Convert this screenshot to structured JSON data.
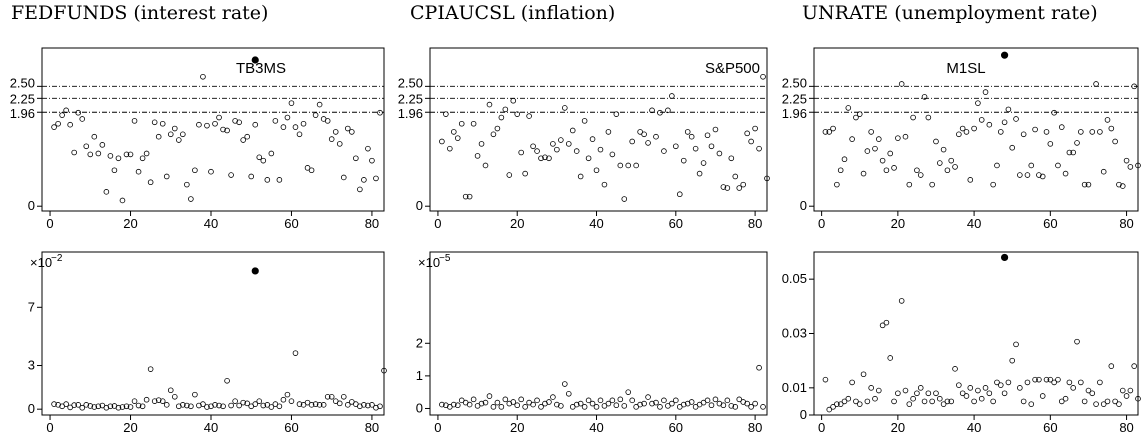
{
  "column_titles": [
    "FEDFUNDS (interest rate)",
    "CPIAUCSL (inflation)",
    "UNRATE (unemployment rate)"
  ],
  "chart_data": [
    {
      "type": "scatter",
      "title": "",
      "label": "TB3MS",
      "xlabel": "",
      "ylabel": "",
      "xlim": [
        -2,
        83
      ],
      "ylim": [
        -0.1,
        3.3
      ],
      "x_ticks": [
        0,
        20,
        40,
        60,
        80
      ],
      "y_ticks": [
        {
          "value": 0,
          "label": "0"
        },
        {
          "value": 1.96,
          "label": "1.96"
        },
        {
          "value": 2.25,
          "label": "2.25"
        },
        {
          "value": 2.5,
          "label": "2.50"
        }
      ],
      "reference_lines": [
        1.96,
        2.25,
        2.5
      ],
      "highlight": {
        "x": 51,
        "y": 3.05
      },
      "y": [
        1.65,
        1.72,
        1.9,
        2.0,
        1.7,
        1.12,
        1.95,
        1.82,
        1.25,
        1.08,
        1.45,
        1.1,
        1.28,
        0.3,
        1.05,
        0.75,
        1.0,
        0.12,
        1.08,
        1.08,
        1.78,
        0.72,
        1.0,
        1.1,
        0.5,
        1.75,
        1.45,
        1.72,
        0.62,
        1.5,
        1.62,
        1.38,
        1.5,
        0.45,
        0.15,
        0.75,
        1.7,
        2.7,
        1.68,
        0.72,
        1.72,
        1.85,
        1.6,
        1.58,
        0.65,
        1.78,
        1.75,
        1.38,
        1.45,
        0.62,
        1.7,
        1.02,
        0.95,
        0.55,
        1.1,
        1.78,
        0.55,
        1.65,
        1.85,
        2.15,
        1.65,
        1.5,
        1.72,
        0.8,
        0.75,
        1.9,
        2.12,
        1.82,
        1.78,
        1.4,
        1.55,
        1.3,
        0.6,
        1.62,
        1.55,
        1.0,
        0.35,
        0.55,
        1.2,
        0.95,
        0.58,
        1.95
      ]
    },
    {
      "type": "scatter",
      "title": "",
      "label": "S&P500",
      "xlabel": "",
      "ylabel": "",
      "xlim": [
        -2,
        83
      ],
      "ylim": [
        -0.1,
        3.3
      ],
      "x_ticks": [
        0,
        20,
        40,
        60,
        80
      ],
      "y_ticks": [
        {
          "value": 0,
          "label": "0"
        },
        {
          "value": 1.96,
          "label": "1.96"
        },
        {
          "value": 2.25,
          "label": "2.25"
        },
        {
          "value": 2.5,
          "label": "2.50"
        }
      ],
      "reference_lines": [
        1.96,
        2.25,
        2.5
      ],
      "y": [
        1.35,
        1.92,
        1.2,
        1.55,
        1.42,
        1.72,
        0.2,
        0.2,
        1.72,
        1.05,
        1.3,
        0.85,
        2.12,
        1.5,
        1.62,
        1.85,
        2.02,
        0.65,
        2.2,
        1.92,
        1.12,
        0.68,
        1.88,
        1.25,
        1.15,
        1.0,
        1.02,
        1.0,
        1.3,
        1.18,
        1.38,
        2.05,
        1.3,
        1.58,
        1.15,
        0.62,
        1.78,
        1.0,
        1.4,
        0.75,
        1.18,
        0.45,
        1.55,
        1.08,
        1.92,
        0.85,
        0.15,
        0.85,
        1.35,
        0.85,
        1.55,
        1.5,
        1.32,
        2.0,
        1.45,
        1.95,
        1.15,
        2.0,
        2.3,
        1.25,
        0.25,
        0.95,
        1.55,
        1.45,
        1.2,
        0.68,
        0.9,
        1.48,
        1.25,
        1.6,
        1.1,
        0.4,
        0.38,
        1.0,
        0.62,
        0.38,
        0.45,
        1.52,
        1.35,
        1.62,
        1.2,
        2.7,
        0.58
      ]
    },
    {
      "type": "scatter",
      "title": "",
      "label": "M1SL",
      "xlabel": "",
      "ylabel": "",
      "xlim": [
        -2,
        83
      ],
      "ylim": [
        -0.1,
        3.3
      ],
      "x_ticks": [
        0,
        20,
        40,
        60,
        80
      ],
      "y_ticks": [
        {
          "value": 0,
          "label": "0"
        },
        {
          "value": 1.96,
          "label": "1.96"
        },
        {
          "value": 2.25,
          "label": "2.25"
        },
        {
          "value": 2.5,
          "label": "2.50"
        }
      ],
      "reference_lines": [
        1.96,
        2.25,
        2.5
      ],
      "highlight": {
        "x": 48,
        "y": 3.15
      },
      "y": [
        1.55,
        1.55,
        1.62,
        0.45,
        0.75,
        0.98,
        2.05,
        1.4,
        1.85,
        1.92,
        0.68,
        1.15,
        1.55,
        1.2,
        1.4,
        0.95,
        0.75,
        1.1,
        0.8,
        1.42,
        2.55,
        1.45,
        0.45,
        1.85,
        0.75,
        0.65,
        2.28,
        1.85,
        0.45,
        1.35,
        0.9,
        1.18,
        0.75,
        0.95,
        0.82,
        1.5,
        1.62,
        1.55,
        0.55,
        1.62,
        2.15,
        1.8,
        2.38,
        1.7,
        0.45,
        0.85,
        1.55,
        1.75,
        2.02,
        1.22,
        1.82,
        0.65,
        1.5,
        0.65,
        0.85,
        1.6,
        0.65,
        0.62,
        1.55,
        1.3,
        1.95,
        0.85,
        1.65,
        0.68,
        1.12,
        1.12,
        1.32,
        1.55,
        0.45,
        0.45,
        1.55,
        2.55,
        1.55,
        0.72,
        1.8,
        1.62,
        1.35,
        0.45,
        0.42,
        0.95,
        0.82,
        2.5,
        0.85
      ]
    },
    {
      "type": "scatter",
      "title": "",
      "xlabel": "",
      "ylabel": "",
      "scale_label": "×10",
      "scale_exponent": "−2",
      "xlim": [
        -2,
        83
      ],
      "ylim": [
        -0.4,
        10.8
      ],
      "x_ticks": [
        0,
        20,
        40,
        60,
        80
      ],
      "y_ticks": [
        {
          "value": 0,
          "label": "0"
        },
        {
          "value": 3,
          "label": "3"
        },
        {
          "value": 7,
          "label": "7"
        }
      ],
      "highlight": {
        "x": 51,
        "y": 9.5
      },
      "y": [
        0.35,
        0.3,
        0.2,
        0.35,
        0.12,
        0.28,
        0.3,
        0.1,
        0.3,
        0.22,
        0.15,
        0.2,
        0.25,
        0.1,
        0.2,
        0.22,
        0.1,
        0.15,
        0.2,
        0.15,
        0.55,
        0.25,
        0.2,
        0.65,
        2.75,
        0.55,
        0.62,
        0.55,
        0.3,
        1.3,
        0.85,
        0.2,
        0.3,
        0.25,
        0.2,
        1.0,
        0.25,
        0.35,
        0.15,
        0.2,
        0.3,
        0.25,
        0.2,
        1.95,
        0.25,
        0.55,
        0.25,
        0.45,
        0.4,
        0.2,
        0.35,
        0.55,
        0.25,
        0.3,
        0.15,
        0.35,
        0.2,
        0.65,
        1.0,
        0.55,
        3.85,
        0.35,
        0.3,
        0.45,
        0.3,
        0.35,
        0.3,
        0.3,
        0.85,
        0.85,
        0.55,
        0.4,
        0.85,
        0.3,
        0.5,
        0.35,
        0.2,
        0.3,
        0.25,
        0.3,
        0.1,
        0.2,
        2.65
      ]
    },
    {
      "type": "scatter",
      "title": "",
      "xlabel": "",
      "ylabel": "",
      "scale_label": "×10",
      "scale_exponent": "−5",
      "xlim": [
        -2,
        83
      ],
      "ylim": [
        -0.2,
        4.8
      ],
      "x_ticks": [
        0,
        20,
        40,
        60,
        80
      ],
      "y_ticks": [
        {
          "value": 0,
          "label": "0"
        },
        {
          "value": 1,
          "label": "1"
        },
        {
          "value": 2,
          "label": "2"
        }
      ],
      "y": [
        0.12,
        0.1,
        0.05,
        0.12,
        0.1,
        0.25,
        0.18,
        0.12,
        0.28,
        0.08,
        0.15,
        0.18,
        0.38,
        0.05,
        0.18,
        0.05,
        0.28,
        0.15,
        0.2,
        0.1,
        0.28,
        0.05,
        0.18,
        0.12,
        0.25,
        0.05,
        0.15,
        0.2,
        0.35,
        0.12,
        0.08,
        0.75,
        0.45,
        0.05,
        0.12,
        0.15,
        0.05,
        0.25,
        0.15,
        0.05,
        0.25,
        0.08,
        0.15,
        0.25,
        0.1,
        0.28,
        0.08,
        0.5,
        0.25,
        0.05,
        0.12,
        0.15,
        0.35,
        0.15,
        0.18,
        0.05,
        0.25,
        0.08,
        0.15,
        0.25,
        0.05,
        0.12,
        0.15,
        0.2,
        0.05,
        0.12,
        0.18,
        0.25,
        0.1,
        0.28,
        0.15,
        0.1,
        0.25,
        0.08,
        0.05,
        0.28,
        0.2,
        0.15,
        0.05,
        0.15,
        1.25,
        0.05
      ]
    },
    {
      "type": "scatter",
      "title": "",
      "xlabel": "",
      "ylabel": "",
      "xlim": [
        -2,
        83
      ],
      "ylim": [
        0,
        0.06
      ],
      "x_ticks": [
        0,
        20,
        40,
        60,
        80
      ],
      "y_ticks": [
        {
          "value": 0,
          "label": "0"
        },
        {
          "value": 0.01,
          "label": "0.01"
        },
        {
          "value": 0.03,
          "label": "0.03"
        },
        {
          "value": 0.05,
          "label": "0.05"
        }
      ],
      "highlight": {
        "x": 48,
        "y": 0.058
      },
      "y": [
        0.013,
        0.002,
        0.003,
        0.004,
        0.004,
        0.005,
        0.006,
        0.012,
        0.005,
        0.004,
        0.015,
        0.005,
        0.01,
        0.006,
        0.009,
        0.033,
        0.034,
        0.021,
        0.005,
        0.008,
        0.042,
        0.009,
        0.004,
        0.006,
        0.008,
        0.01,
        0.005,
        0.008,
        0.005,
        0.008,
        0.006,
        0.004,
        0.005,
        0.005,
        0.017,
        0.011,
        0.008,
        0.007,
        0.01,
        0.005,
        0.009,
        0.006,
        0.01,
        0.008,
        0.005,
        0.012,
        0.011,
        0.008,
        0.012,
        0.02,
        0.026,
        0.01,
        0.005,
        0.012,
        0.004,
        0.013,
        0.013,
        0.007,
        0.013,
        0.013,
        0.012,
        0.013,
        0.005,
        0.006,
        0.012,
        0.01,
        0.027,
        0.012,
        0.005,
        0.009,
        0.008,
        0.004,
        0.012,
        0.004,
        0.005,
        0.018,
        0.005,
        0.004,
        0.009,
        0.007,
        0.009,
        0.018,
        0.006
      ]
    }
  ]
}
